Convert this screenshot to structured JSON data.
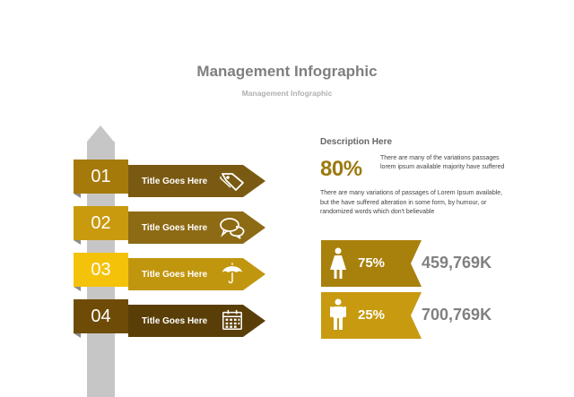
{
  "header": {
    "title": "Management Infographic",
    "subtitle": "Management Infographic"
  },
  "signpost": {
    "rows": [
      {
        "number": "01",
        "label": "Title Goes Here",
        "icon": "tag-icon",
        "color": "#a57a0a",
        "arrow_color": "#7a5a12"
      },
      {
        "number": "02",
        "label": "Title Goes Here",
        "icon": "chat-bubbles-icon",
        "color": "#c99a0e",
        "arrow_color": "#8d6a14"
      },
      {
        "number": "03",
        "label": "Title Goes Here",
        "icon": "umbrella-icon",
        "color": "#f5c20a",
        "arrow_color": "#c1960f"
      },
      {
        "number": "04",
        "label": "Title Goes Here",
        "icon": "calendar-icon",
        "color": "#6e4c07",
        "arrow_color": "#5a3e08"
      }
    ],
    "post_color": "#c6c6c6"
  },
  "description": {
    "heading": "Description Here",
    "highlight_value": "80%",
    "highlight_text": "There are many of the variations passages lorem ipsum available majority have suffered",
    "paragraph": "There are many variations of passages  of Lorem Ipsum available, but the have suffered alteration in some  form, by humour,  or randomized words  which  don't believable"
  },
  "stats": [
    {
      "icon": "female-person-icon",
      "percent": "75%",
      "value": "459,769K",
      "color": "#a8800c"
    },
    {
      "icon": "male-person-icon",
      "percent": "25%",
      "value": "700,769K",
      "color": "#c79a10"
    }
  ]
}
